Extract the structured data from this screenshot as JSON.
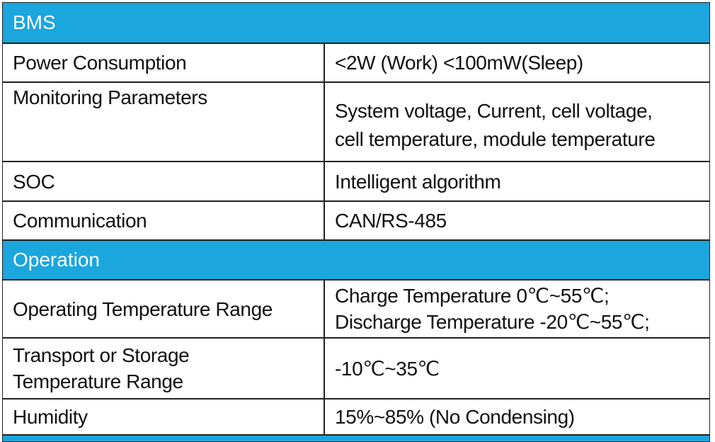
{
  "sections": [
    {
      "title": "BMS",
      "rows": [
        {
          "label": [
            "Power Consumption"
          ],
          "value": [
            "<2W (Work) <100mW(Sleep)"
          ]
        },
        {
          "label": [
            "Monitoring Parameters"
          ],
          "value": [
            "System voltage, Current, cell voltage,",
            "cell temperature, module temperature"
          ]
        },
        {
          "label": [
            "SOC"
          ],
          "value": [
            "Intelligent algorithm"
          ]
        },
        {
          "label": [
            "Communication"
          ],
          "value": [
            "CAN/RS-485"
          ]
        }
      ]
    },
    {
      "title": "Operation",
      "rows": [
        {
          "label": [
            "Operating Temperature Range"
          ],
          "value": [
            "Charge Temperature 0℃~55℃;",
            "Discharge Temperature -20℃~55℃;"
          ]
        },
        {
          "label": [
            "Transport or Storage",
            "Temperature Range"
          ],
          "value": [
            "-10℃~35℃"
          ]
        },
        {
          "label": [
            "Humidity"
          ],
          "value": [
            "15%~85% (No Condensing)"
          ]
        }
      ]
    }
  ]
}
